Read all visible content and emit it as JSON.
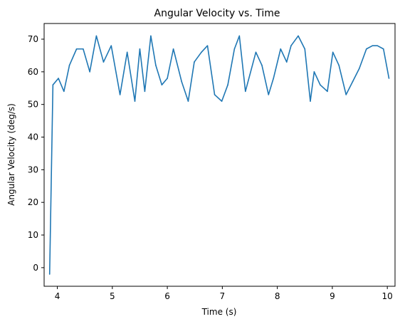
{
  "chart_data": {
    "type": "line",
    "title": "Angular Velocity vs. Time",
    "xlabel": "Time (s)",
    "ylabel": "Angular Velocity (deg/s)",
    "xlim": [
      3.76,
      10.14
    ],
    "ylim": [
      -5.7,
      74.8
    ],
    "xticks": [
      4,
      5,
      6,
      7,
      8,
      9,
      10
    ],
    "yticks": [
      0,
      10,
      20,
      30,
      40,
      50,
      60,
      70
    ],
    "xtick_labels": [
      "4",
      "5",
      "6",
      "7",
      "8",
      "9",
      "10"
    ],
    "ytick_labels": [
      "0",
      "10",
      "20",
      "30",
      "40",
      "50",
      "60",
      "70"
    ],
    "grid": false,
    "series": [
      {
        "name": "Angular Velocity",
        "color": "#1f77b4",
        "x": [
          3.86,
          3.92,
          4.02,
          4.12,
          4.22,
          4.35,
          4.47,
          4.59,
          4.71,
          4.84,
          4.98,
          5.14,
          5.27,
          5.41,
          5.5,
          5.59,
          5.7,
          5.79,
          5.9,
          6.0,
          6.11,
          6.26,
          6.38,
          6.49,
          6.62,
          6.73,
          6.86,
          6.99,
          7.1,
          7.22,
          7.31,
          7.42,
          7.61,
          7.72,
          7.84,
          7.93,
          8.06,
          8.17,
          8.25,
          8.38,
          8.5,
          8.6,
          8.67,
          8.78,
          8.91,
          9.01,
          9.12,
          9.25,
          9.37,
          9.49,
          9.62,
          9.73,
          9.82,
          9.93,
          10.03
        ],
        "y": [
          -2,
          56,
          58,
          54,
          62,
          67,
          67,
          60,
          71,
          63,
          68,
          53,
          66,
          51,
          67,
          54,
          71,
          62,
          56,
          58,
          67,
          57,
          51,
          63,
          66,
          68,
          53,
          51,
          56,
          67,
          71,
          54,
          66,
          62,
          53,
          58,
          67,
          63,
          68,
          71,
          67,
          51,
          60,
          56,
          54,
          66,
          62,
          53,
          57,
          61,
          67,
          68,
          68,
          67,
          58
        ]
      }
    ]
  }
}
